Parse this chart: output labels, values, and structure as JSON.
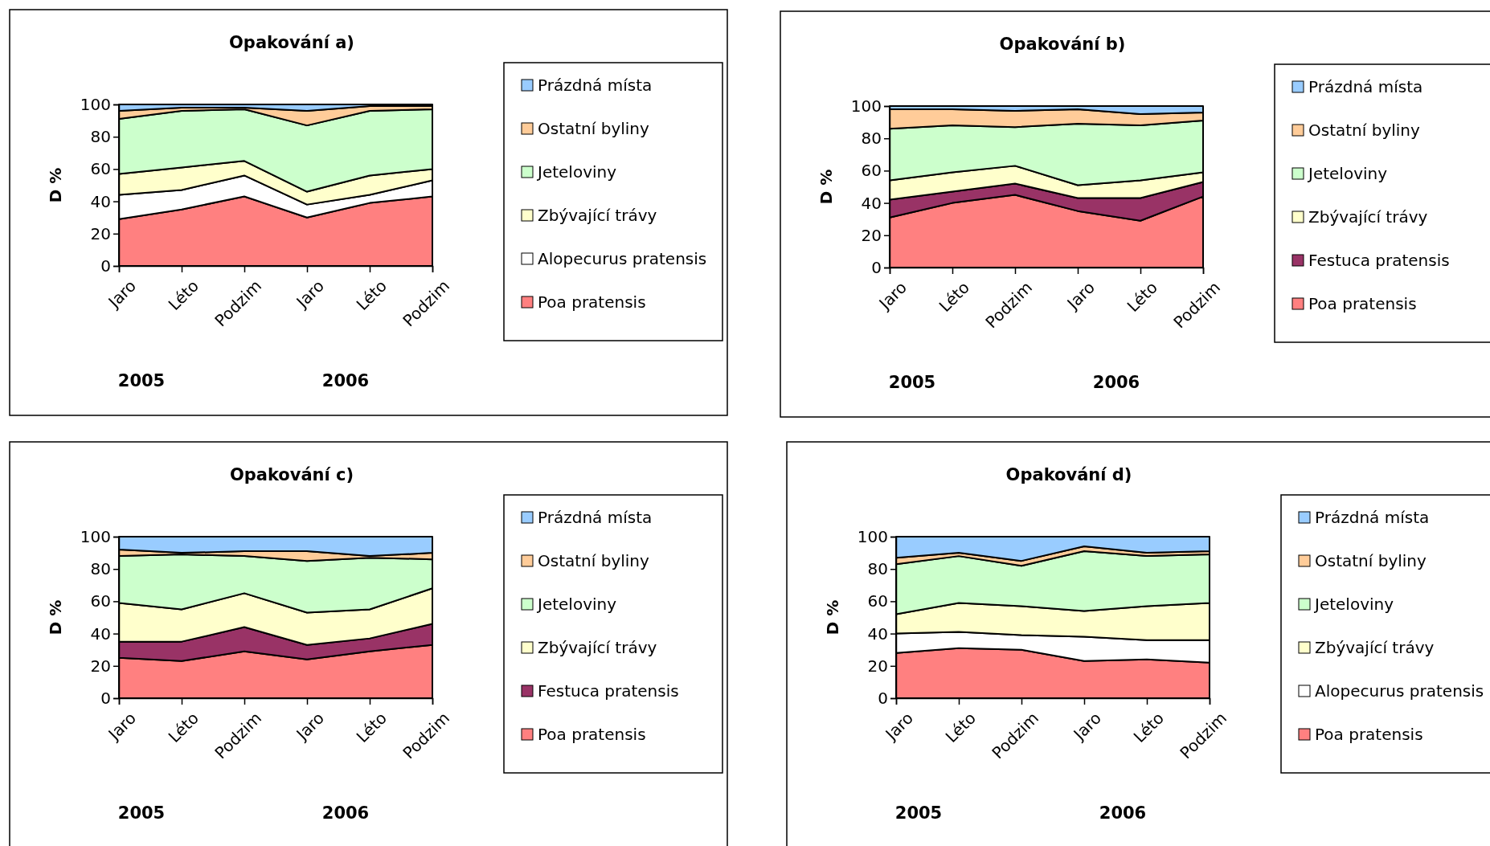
{
  "chart_data": [
    {
      "type": "area",
      "title": "Opakování a)",
      "ylabel": "D %",
      "stacked": true,
      "legend": "right",
      "categories": [
        "Jaro",
        "Léto",
        "Podzim",
        "Jaro",
        "Léto",
        "Podzim"
      ],
      "annotations": [
        "2005",
        "2006"
      ],
      "ylim": [
        0,
        100
      ],
      "yticks": [
        0,
        20,
        40,
        60,
        80,
        100
      ],
      "series": [
        {
          "name": "Poa pratensis",
          "color": "#ff8080",
          "values": [
            29,
            35,
            43,
            30,
            39,
            43
          ]
        },
        {
          "name": "Alopecurus pratensis",
          "color": "#ffffff",
          "values": [
            15,
            12,
            13,
            8,
            5,
            10
          ]
        },
        {
          "name": "Zbývající trávy",
          "color": "#ffffcc",
          "values": [
            13,
            14,
            9,
            8,
            12,
            7
          ]
        },
        {
          "name": "Jeteloviny",
          "color": "#ccffcc",
          "values": [
            34,
            35,
            32,
            41,
            40,
            37
          ]
        },
        {
          "name": "Ostatní byliny",
          "color": "#ffcc99",
          "values": [
            5,
            2,
            1,
            9,
            3,
            2
          ]
        },
        {
          "name": "Prázdná místa",
          "color": "#99ccff",
          "values": [
            4,
            2,
            2,
            4,
            1,
            1
          ]
        }
      ]
    },
    {
      "type": "area",
      "title": "Opakování b)",
      "ylabel": "D %",
      "stacked": true,
      "legend": "right",
      "categories": [
        "Jaro",
        "Léto",
        "Podzim",
        "Jaro",
        "Léto",
        "Podzim"
      ],
      "annotations": [
        "2005",
        "2006"
      ],
      "ylim": [
        0,
        100
      ],
      "yticks": [
        0,
        20,
        40,
        60,
        80,
        100
      ],
      "series": [
        {
          "name": "Poa pratensis",
          "color": "#ff8080",
          "values": [
            31,
            40,
            45,
            35,
            29,
            44
          ]
        },
        {
          "name": "Festuca pratensis",
          "color": "#993366",
          "values": [
            11,
            7,
            7,
            8,
            14,
            9
          ]
        },
        {
          "name": "Zbývající trávy",
          "color": "#ffffcc",
          "values": [
            12,
            12,
            11,
            8,
            11,
            6
          ]
        },
        {
          "name": "Jeteloviny",
          "color": "#ccffcc",
          "values": [
            32,
            29,
            24,
            38,
            34,
            32
          ]
        },
        {
          "name": "Ostatní byliny",
          "color": "#ffcc99",
          "values": [
            12,
            10,
            10,
            9,
            7,
            5
          ]
        },
        {
          "name": "Prázdná místa",
          "color": "#99ccff",
          "values": [
            2,
            2,
            3,
            2,
            5,
            4
          ]
        }
      ]
    },
    {
      "type": "area",
      "title": "Opakování c)",
      "ylabel": "D %",
      "stacked": true,
      "legend": "right",
      "categories": [
        "Jaro",
        "Léto",
        "Podzim",
        "Jaro",
        "Léto",
        "Podzim"
      ],
      "annotations": [
        "2005",
        "2006"
      ],
      "ylim": [
        0,
        100
      ],
      "yticks": [
        0,
        20,
        40,
        60,
        80,
        100
      ],
      "series": [
        {
          "name": "Poa pratensis",
          "color": "#ff8080",
          "values": [
            25,
            23,
            29,
            24,
            29,
            33
          ]
        },
        {
          "name": "Festuca pratensis",
          "color": "#993366",
          "values": [
            10,
            12,
            15,
            9,
            8,
            13
          ]
        },
        {
          "name": "Zbývající trávy",
          "color": "#ffffcc",
          "values": [
            24,
            20,
            21,
            20,
            18,
            22
          ]
        },
        {
          "name": "Jeteloviny",
          "color": "#ccffcc",
          "values": [
            29,
            34,
            23,
            32,
            32,
            18
          ]
        },
        {
          "name": "Ostatní byliny",
          "color": "#ffcc99",
          "values": [
            4,
            1,
            3,
            6,
            1,
            4
          ]
        },
        {
          "name": "Prázdná místa",
          "color": "#99ccff",
          "values": [
            8,
            10,
            9,
            9,
            12,
            10
          ]
        }
      ]
    },
    {
      "type": "area",
      "title": "Opakování d)",
      "ylabel": "D %",
      "stacked": true,
      "legend": "right",
      "categories": [
        "Jaro",
        "Léto",
        "Podzim",
        "Jaro",
        "Léto",
        "Podzim"
      ],
      "annotations": [
        "2005",
        "2006"
      ],
      "ylim": [
        0,
        100
      ],
      "yticks": [
        0,
        20,
        40,
        60,
        80,
        100
      ],
      "series": [
        {
          "name": "Poa pratensis",
          "color": "#ff8080",
          "values": [
            28,
            31,
            30,
            23,
            24,
            22
          ]
        },
        {
          "name": "Alopecurus pratensis",
          "color": "#ffffff",
          "values": [
            12,
            10,
            9,
            15,
            12,
            14
          ]
        },
        {
          "name": "Zbývající trávy",
          "color": "#ffffcc",
          "values": [
            12,
            18,
            18,
            16,
            21,
            23
          ]
        },
        {
          "name": "Jeteloviny",
          "color": "#ccffcc",
          "values": [
            31,
            29,
            25,
            37,
            31,
            30
          ]
        },
        {
          "name": "Ostatní byliny",
          "color": "#ffcc99",
          "values": [
            4,
            2,
            3,
            3,
            2,
            2
          ]
        },
        {
          "name": "Prázdná místa",
          "color": "#99ccff",
          "values": [
            13,
            10,
            15,
            6,
            10,
            9
          ]
        }
      ]
    }
  ]
}
